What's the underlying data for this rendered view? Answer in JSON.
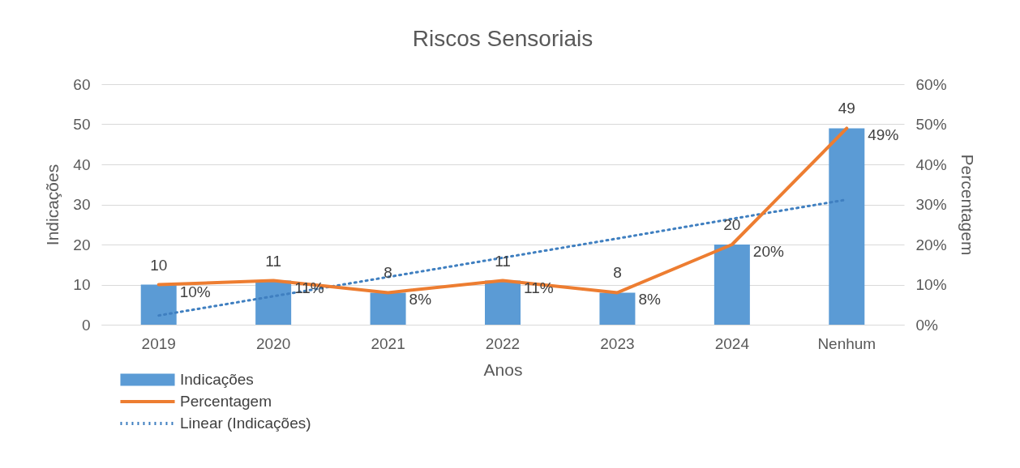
{
  "chart_data": {
    "type": "bar",
    "title": "Riscos Sensoriais",
    "xlabel": "Anos",
    "ylabel": "Indicações",
    "y2label": "Percentagem",
    "categories": [
      "2019",
      "2020",
      "2021",
      "2022",
      "2023",
      "2024",
      "Nenhum"
    ],
    "series": [
      {
        "name": "Indicações",
        "color": "#5b9bd5",
        "values": [
          10,
          11,
          8,
          11,
          8,
          20,
          49
        ],
        "value_labels": [
          "10",
          "11",
          "8",
          "11",
          "8",
          "20",
          "49"
        ]
      },
      {
        "name": "Percentagem",
        "type": "line",
        "axis": "y2",
        "color": "#ed7d31",
        "line_style": "solid",
        "values": [
          10,
          11,
          8,
          11,
          8,
          20,
          49
        ],
        "value_labels": [
          "10%",
          "11%",
          "8%",
          "11%",
          "8%",
          "20%",
          "49%"
        ]
      },
      {
        "name": "Linear (Indicações)",
        "type": "line",
        "color": "#3f7fc0",
        "line_style": "dotted",
        "values": [
          2.3,
          7.1,
          11.9,
          16.7,
          21.5,
          26.4,
          31.2
        ]
      }
    ],
    "ylim": [
      0,
      60
    ],
    "yticks": [
      0,
      10,
      20,
      30,
      40,
      50,
      60
    ],
    "y2lim": [
      0,
      60
    ],
    "y2ticks": [
      {
        "value": 0,
        "label": "0%"
      },
      {
        "value": 10,
        "label": "10%"
      },
      {
        "value": 20,
        "label": "20%"
      },
      {
        "value": 30,
        "label": "30%"
      },
      {
        "value": 40,
        "label": "40%"
      },
      {
        "value": 50,
        "label": "50%"
      },
      {
        "value": 60,
        "label": "60%"
      }
    ],
    "grid": "y",
    "legend": "bottom left",
    "marker": "none"
  }
}
